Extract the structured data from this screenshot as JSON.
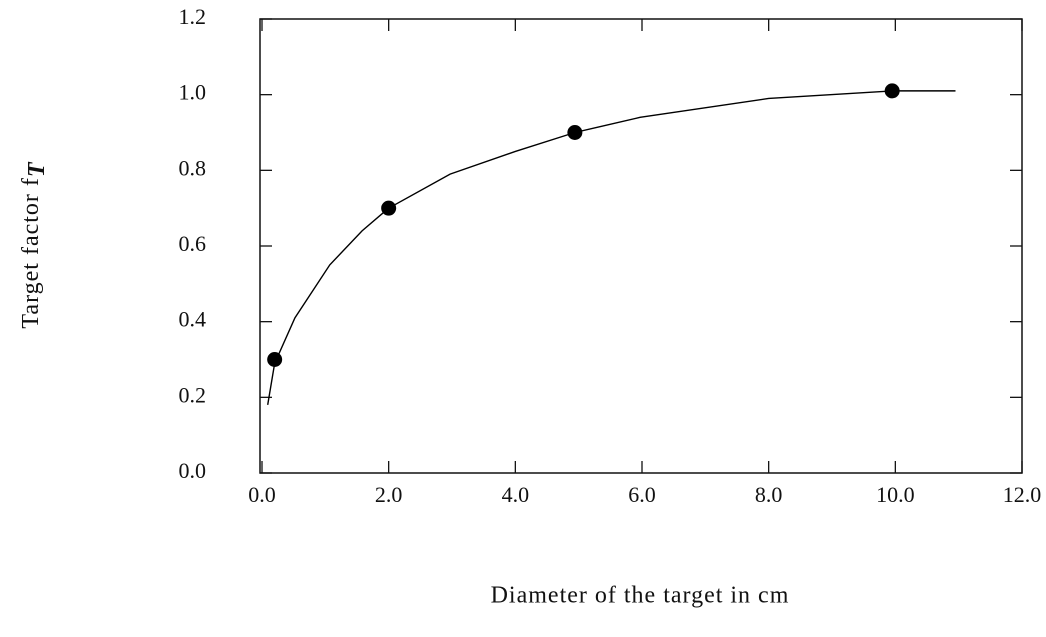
{
  "chart_data": {
    "type": "line",
    "x_label": "Diameter of the target in cm",
    "y_label": "Target factor f",
    "y_label_subscript": "T",
    "series": [
      {
        "color": "#000000",
        "style": "line",
        "x": [
          0.09,
          0.2,
          0.52,
          1.07,
          1.58,
          2.0,
          2.97,
          4.0,
          4.94,
          5.97,
          8.0,
          9.95,
          10.95
        ],
        "values": [
          0.18,
          0.29,
          0.41,
          0.55,
          0.64,
          0.7,
          0.79,
          0.85,
          0.9,
          0.94,
          0.99,
          1.01,
          1.01
        ]
      },
      {
        "color": "#000000",
        "style": "markers",
        "x": [
          0.2,
          2.0,
          4.94,
          9.95
        ],
        "values": [
          0.3,
          0.7,
          0.9,
          1.01
        ]
      }
    ],
    "xlim": [
      0,
      12
    ],
    "ylim": [
      0,
      1.2
    ],
    "xticks": [
      {
        "value": 0,
        "label": "0.0"
      },
      {
        "value": 2,
        "label": "2.0"
      },
      {
        "value": 4,
        "label": "4.0"
      },
      {
        "value": 6,
        "label": "6.0"
      },
      {
        "value": 8,
        "label": "8.0"
      },
      {
        "value": 10,
        "label": "10.0"
      },
      {
        "value": 12,
        "label": "12.0"
      }
    ],
    "yticks": [
      {
        "value": 0,
        "label": "0.0"
      },
      0.2,
      0.4,
      0.6,
      0.8,
      {
        "value": 1,
        "label": "1.0"
      },
      1.2
    ],
    "grid": false
  }
}
